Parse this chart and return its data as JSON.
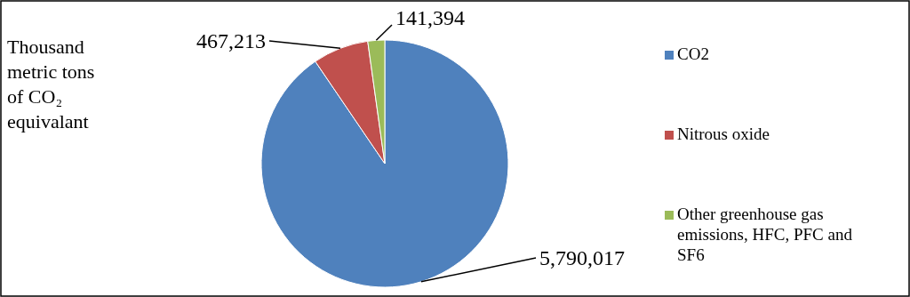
{
  "chart_data": {
    "type": "pie",
    "title": "Thousand metric tons of CO₂ equivalant",
    "categories": [
      "CO2",
      "Nitrous oxide",
      "Other greenhouse gas emissions, HFC, PFC and SF6"
    ],
    "values": [
      5790017,
      467213,
      141394
    ],
    "colors": [
      "#4f81bd",
      "#c0504d",
      "#9bbb59"
    ],
    "value_labels": [
      "5,790,017",
      "467,213",
      "141,394"
    ],
    "legend": "right"
  }
}
